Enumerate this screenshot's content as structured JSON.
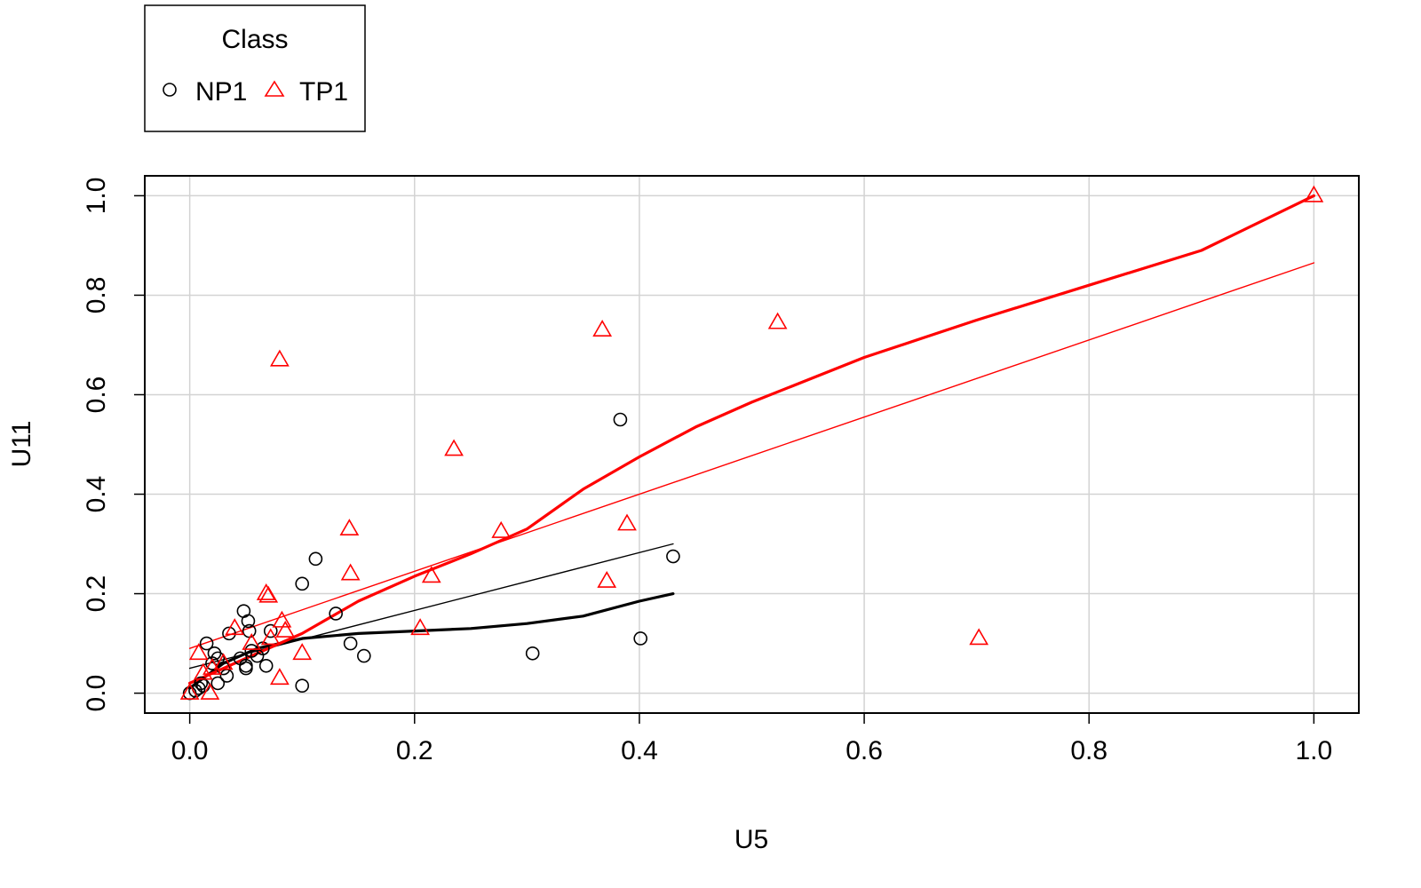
{
  "chart_data": {
    "type": "scatter",
    "xlabel": "U5",
    "ylabel": "U11",
    "xlim": [
      -0.04,
      1.04
    ],
    "ylim": [
      -0.04,
      1.04
    ],
    "x_ticks": [
      "0.0",
      "0.2",
      "0.4",
      "0.6",
      "0.8",
      "1.0"
    ],
    "y_ticks": [
      "0.0",
      "0.2",
      "0.4",
      "0.6",
      "0.8",
      "1.0"
    ],
    "grid": true,
    "legend": {
      "title": "Class",
      "placement": "top-left outside",
      "entries": [
        {
          "label": "NP1",
          "marker": "circle",
          "color": "#000000"
        },
        {
          "label": "TP1",
          "marker": "triangle",
          "color": "#ff0000"
        }
      ]
    },
    "series": [
      {
        "name": "NP1",
        "marker": "circle",
        "color": "#000000",
        "points": [
          [
            0.0,
            0.0
          ],
          [
            0.005,
            0.005
          ],
          [
            0.008,
            0.01
          ],
          [
            0.01,
            0.02
          ],
          [
            0.012,
            0.015
          ],
          [
            0.015,
            0.1
          ],
          [
            0.02,
            0.06
          ],
          [
            0.022,
            0.08
          ],
          [
            0.025,
            0.07
          ],
          [
            0.025,
            0.02
          ],
          [
            0.03,
            0.05
          ],
          [
            0.033,
            0.035
          ],
          [
            0.035,
            0.12
          ],
          [
            0.045,
            0.07
          ],
          [
            0.048,
            0.165
          ],
          [
            0.05,
            0.055
          ],
          [
            0.05,
            0.05
          ],
          [
            0.052,
            0.145
          ],
          [
            0.053,
            0.125
          ],
          [
            0.055,
            0.085
          ],
          [
            0.06,
            0.075
          ],
          [
            0.065,
            0.09
          ],
          [
            0.068,
            0.055
          ],
          [
            0.072,
            0.125
          ],
          [
            0.1,
            0.22
          ],
          [
            0.1,
            0.015
          ],
          [
            0.112,
            0.27
          ],
          [
            0.13,
            0.16
          ],
          [
            0.143,
            0.1
          ],
          [
            0.155,
            0.075
          ],
          [
            0.305,
            0.08
          ],
          [
            0.383,
            0.55
          ],
          [
            0.401,
            0.11
          ],
          [
            0.43,
            0.275
          ]
        ],
        "lines": [
          {
            "style": "thin",
            "points": [
              [
                0.0,
                0.05
              ],
              [
                0.43,
                0.3
              ]
            ]
          },
          {
            "style": "thick",
            "points": [
              [
                0.0,
                0.01
              ],
              [
                0.03,
                0.06
              ],
              [
                0.06,
                0.09
              ],
              [
                0.1,
                0.11
              ],
              [
                0.15,
                0.12
              ],
              [
                0.2,
                0.125
              ],
              [
                0.25,
                0.13
              ],
              [
                0.3,
                0.14
              ],
              [
                0.35,
                0.155
              ],
              [
                0.4,
                0.185
              ],
              [
                0.43,
                0.2
              ]
            ]
          }
        ]
      },
      {
        "name": "TP1",
        "marker": "triangle",
        "color": "#ff0000",
        "points": [
          [
            0.0,
            0.0
          ],
          [
            0.008,
            0.08
          ],
          [
            0.012,
            0.04
          ],
          [
            0.018,
            0.0
          ],
          [
            0.02,
            0.05
          ],
          [
            0.03,
            0.06
          ],
          [
            0.04,
            0.13
          ],
          [
            0.055,
            0.1
          ],
          [
            0.068,
            0.2
          ],
          [
            0.07,
            0.195
          ],
          [
            0.072,
            0.11
          ],
          [
            0.08,
            0.03
          ],
          [
            0.08,
            0.67
          ],
          [
            0.082,
            0.145
          ],
          [
            0.085,
            0.125
          ],
          [
            0.1,
            0.08
          ],
          [
            0.142,
            0.33
          ],
          [
            0.143,
            0.24
          ],
          [
            0.205,
            0.13
          ],
          [
            0.215,
            0.235
          ],
          [
            0.235,
            0.49
          ],
          [
            0.277,
            0.325
          ],
          [
            0.367,
            0.73
          ],
          [
            0.371,
            0.225
          ],
          [
            0.389,
            0.34
          ],
          [
            0.523,
            0.745
          ],
          [
            0.702,
            0.11
          ],
          [
            1.0,
            1.0
          ]
        ],
        "lines": [
          {
            "style": "thin",
            "points": [
              [
                0.0,
                0.09
              ],
              [
                1.0,
                0.865
              ]
            ]
          },
          {
            "style": "thick",
            "points": [
              [
                0.0,
                0.02
              ],
              [
                0.05,
                0.07
              ],
              [
                0.1,
                0.12
              ],
              [
                0.15,
                0.185
              ],
              [
                0.2,
                0.235
              ],
              [
                0.25,
                0.28
              ],
              [
                0.3,
                0.33
              ],
              [
                0.35,
                0.41
              ],
              [
                0.4,
                0.475
              ],
              [
                0.45,
                0.535
              ],
              [
                0.5,
                0.585
              ],
              [
                0.6,
                0.675
              ],
              [
                0.7,
                0.75
              ],
              [
                0.8,
                0.82
              ],
              [
                0.9,
                0.89
              ],
              [
                1.0,
                1.0
              ]
            ]
          }
        ]
      }
    ]
  }
}
